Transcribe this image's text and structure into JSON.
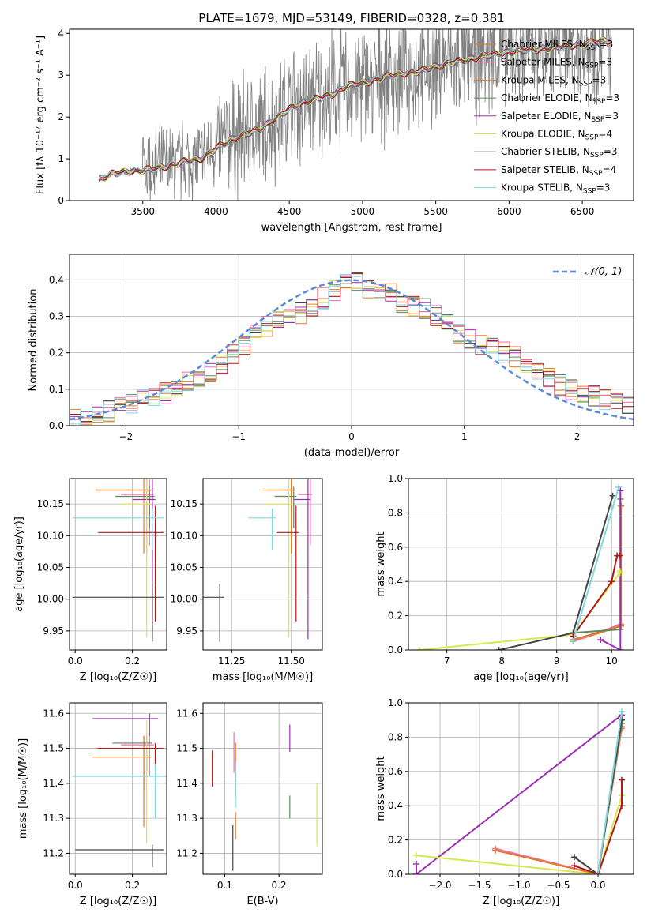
{
  "title": "PLATE=1679, MJD=53149, FIBERID=0328, z=0.381",
  "colors": {
    "chabrier_miles": "#e87d1e",
    "salpeter_miles": "#ee6fb4",
    "kroupa_miles": "#e07a2a",
    "chabrier_elodie": "#5a8a5a",
    "salpeter_elodie": "#9b2fb4",
    "kroupa_elodie": "#d6e84a",
    "chabrier_stelib": "#444444",
    "salpeter_stelib": "#b01818",
    "kroupa_stelib": "#7fd8e0",
    "data": "#808080",
    "gauss": "#5b8bd6"
  },
  "legend": [
    {
      "label": "Chabrier MILES, N",
      "sub": "SSP",
      "tail": "=3",
      "color": "#e87d1e"
    },
    {
      "label": "Salpeter MILES, N",
      "sub": "SSP",
      "tail": "=3",
      "color": "#ee6fb4"
    },
    {
      "label": "Kroupa MILES, N",
      "sub": "SSP",
      "tail": "=3",
      "color": "#e07a2a"
    },
    {
      "label": "Chabrier ELODIE, N",
      "sub": "SSP",
      "tail": "=3",
      "color": "#5a8a5a"
    },
    {
      "label": "Salpeter ELODIE, N",
      "sub": "SSP",
      "tail": "=3",
      "color": "#9b2fb4"
    },
    {
      "label": "Kroupa ELODIE, N",
      "sub": "SSP",
      "tail": "=4",
      "color": "#d6e84a"
    },
    {
      "label": "Chabrier STELIB, N",
      "sub": "SSP",
      "tail": "=3",
      "color": "#444444"
    },
    {
      "label": "Salpeter STELIB, N",
      "sub": "SSP",
      "tail": "=4",
      "color": "#b01818"
    },
    {
      "label": "Kroupa STELIB, N",
      "sub": "SSP",
      "tail": "=3",
      "color": "#7fd8e0"
    }
  ],
  "chart_data": [
    {
      "type": "line",
      "name": "spectrum",
      "xlabel": "wavelength [Angstrom, rest frame]",
      "ylabel": "Flux [fλ 10⁻¹⁷ erg cm⁻² s⁻¹ A⁻¹]",
      "xlim": [
        3000,
        6850
      ],
      "ylim": [
        0,
        4.1
      ],
      "xticks": [
        3500,
        4000,
        4500,
        5000,
        5500,
        6000,
        6500
      ],
      "yticks": [
        0,
        1,
        2,
        3,
        4
      ],
      "model_continuum": {
        "x": [
          3200,
          3300,
          3400,
          3500,
          3600,
          3700,
          3800,
          3900,
          4000,
          4100,
          4200,
          4300,
          4400,
          4500,
          4600,
          4700,
          4800,
          4900,
          5000,
          5100,
          5200,
          5300,
          5400,
          5500,
          5600,
          5700,
          5800,
          5900,
          6000,
          6100,
          6200,
          6300,
          6400,
          6500,
          6600,
          6700
        ],
        "y": [
          0.5,
          0.65,
          0.7,
          0.72,
          0.78,
          0.85,
          0.95,
          1.0,
          1.25,
          1.45,
          1.6,
          1.7,
          1.95,
          2.2,
          2.35,
          2.45,
          2.55,
          2.75,
          2.8,
          2.9,
          3.0,
          3.05,
          3.1,
          3.2,
          3.3,
          3.35,
          3.45,
          3.5,
          3.55,
          3.6,
          3.62,
          3.65,
          3.7,
          3.75,
          3.8,
          3.85
        ]
      }
    },
    {
      "type": "line",
      "name": "residual_histogram",
      "xlabel": "(data-model)/error",
      "ylabel": "Normed distribution",
      "xlim": [
        -2.5,
        2.5
      ],
      "ylim": [
        0,
        0.47
      ],
      "xticks": [
        -2,
        -1,
        0,
        1,
        2
      ],
      "yticks": [
        0.0,
        0.1,
        0.2,
        0.3,
        0.4
      ],
      "gauss_label": "𝒩(0, 1)",
      "hist_bins": [
        -2.5,
        -2.4,
        -2.3,
        -2.2,
        -2.1,
        -2.0,
        -1.9,
        -1.8,
        -1.7,
        -1.6,
        -1.5,
        -1.4,
        -1.3,
        -1.2,
        -1.1,
        -1.0,
        -0.9,
        -0.8,
        -0.7,
        -0.6,
        -0.5,
        -0.4,
        -0.3,
        -0.2,
        -0.1,
        0.0,
        0.1,
        0.2,
        0.3,
        0.4,
        0.5,
        0.6,
        0.7,
        0.8,
        0.9,
        1.0,
        1.1,
        1.2,
        1.3,
        1.4,
        1.5,
        1.6,
        1.7,
        1.8,
        1.9,
        2.0,
        2.1,
        2.2,
        2.3,
        2.4
      ],
      "hist_base": [
        0.02,
        0.025,
        0.03,
        0.04,
        0.05,
        0.06,
        0.07,
        0.08,
        0.09,
        0.1,
        0.12,
        0.13,
        0.15,
        0.17,
        0.2,
        0.22,
        0.25,
        0.27,
        0.29,
        0.3,
        0.31,
        0.33,
        0.35,
        0.37,
        0.39,
        0.4,
        0.38,
        0.37,
        0.36,
        0.34,
        0.33,
        0.32,
        0.3,
        0.28,
        0.25,
        0.24,
        0.22,
        0.21,
        0.2,
        0.19,
        0.17,
        0.15,
        0.13,
        0.11,
        0.1,
        0.09,
        0.08,
        0.07,
        0.06,
        0.06
      ]
    },
    {
      "type": "scatter",
      "name": "age_vs_Z",
      "xlabel": "Z [log₁₀(Z/Z☉)]",
      "ylabel": "age  [log₁₀(age/yr)]",
      "xlim": [
        -0.02,
        0.32
      ],
      "ylim": [
        9.92,
        10.19
      ],
      "xticks": [
        0.0,
        0.2
      ],
      "yticks": [
        9.95,
        10.0,
        10.05,
        10.1,
        10.15
      ],
      "points": [
        {
          "key": "chabrier_miles",
          "x": 0.24,
          "y": 10.172,
          "xerr": 0.17,
          "yerr": 0.1
        },
        {
          "key": "salpeter_miles",
          "x": 0.26,
          "y": 10.165,
          "xerr": 0.1,
          "yerr": 0.08
        },
        {
          "key": "kroupa_miles",
          "x": 0.25,
          "y": 10.172,
          "xerr": 0.18,
          "yerr": 0.1
        },
        {
          "key": "chabrier_elodie",
          "x": 0.26,
          "y": 10.162,
          "xerr": 0.12,
          "yerr": 0.05
        },
        {
          "key": "salpeter_elodie",
          "x": 0.27,
          "y": 10.157,
          "xerr": 0.07,
          "yerr": 0.22
        },
        {
          "key": "kroupa_elodie",
          "x": 0.25,
          "y": 10.15,
          "xerr": 0.09,
          "yerr": 0.21
        },
        {
          "key": "chabrier_stelib",
          "x": 0.27,
          "y": 10.003,
          "xerr": 0.28,
          "yerr": 0.07
        },
        {
          "key": "salpeter_stelib",
          "x": 0.28,
          "y": 10.105,
          "xerr": 0.2,
          "yerr": 0.14
        },
        {
          "key": "kroupa_stelib",
          "x": 0.27,
          "y": 10.128,
          "xerr": 0.28,
          "yerr": 0.05
        }
      ]
    },
    {
      "type": "scatter",
      "name": "age_vs_mass",
      "xlabel": "mass [log₁₀(M/M☉)]",
      "ylabel": "",
      "xlim": [
        11.13,
        11.63
      ],
      "ylim": [
        9.92,
        10.19
      ],
      "xticks": [
        11.25,
        11.5
      ],
      "yticks": [
        9.95,
        10.0,
        10.05,
        10.1,
        10.15
      ],
      "points": [
        {
          "key": "chabrier_miles",
          "x": 11.5,
          "y": 10.172,
          "xerr": 0.12,
          "yerr": 0.1
        },
        {
          "key": "salpeter_miles",
          "x": 11.58,
          "y": 10.165,
          "xerr": 0.05,
          "yerr": 0.08
        },
        {
          "key": "kroupa_miles",
          "x": 11.5,
          "y": 10.172,
          "xerr": 0.1,
          "yerr": 0.1
        },
        {
          "key": "chabrier_elodie",
          "x": 11.51,
          "y": 10.162,
          "xerr": 0.08,
          "yerr": 0.05
        },
        {
          "key": "salpeter_elodie",
          "x": 11.57,
          "y": 10.157,
          "xerr": 0.06,
          "yerr": 0.22
        },
        {
          "key": "kroupa_elodie",
          "x": 11.49,
          "y": 10.15,
          "xerr": 0.1,
          "yerr": 0.21
        },
        {
          "key": "chabrier_stelib",
          "x": 11.2,
          "y": 10.003,
          "xerr": 0.12,
          "yerr": 0.07
        },
        {
          "key": "salpeter_stelib",
          "x": 11.52,
          "y": 10.105,
          "xerr": 0.08,
          "yerr": 0.14
        },
        {
          "key": "kroupa_stelib",
          "x": 11.42,
          "y": 10.128,
          "xerr": 0.1,
          "yerr": 0.05
        }
      ]
    },
    {
      "type": "line",
      "name": "massweight_vs_age",
      "xlabel": "age  [log₁₀(age/yr)]",
      "ylabel": "mass weight",
      "xlim": [
        6.3,
        10.4
      ],
      "ylim": [
        0.0,
        1.0
      ],
      "xticks": [
        7,
        8,
        9,
        10
      ],
      "yticks": [
        0.0,
        0.2,
        0.4,
        0.6,
        0.8,
        1.0
      ],
      "series": [
        {
          "key": "chabrier_miles",
          "x": [
            9.3,
            10.17,
            10.17
          ],
          "y": [
            0.05,
            0.14,
            0.84
          ]
        },
        {
          "key": "salpeter_miles",
          "x": [
            9.3,
            10.17,
            10.17
          ],
          "y": [
            0.05,
            0.15,
            0.84
          ]
        },
        {
          "key": "kroupa_miles",
          "x": [
            9.3,
            10.17,
            10.17
          ],
          "y": [
            0.06,
            0.14,
            0.84
          ]
        },
        {
          "key": "chabrier_elodie",
          "x": [
            9.3,
            10.16,
            10.16
          ],
          "y": [
            0.1,
            0.12,
            0.88
          ]
        },
        {
          "key": "salpeter_elodie",
          "x": [
            9.8,
            10.16,
            10.16
          ],
          "y": [
            0.06,
            0.0,
            0.93
          ]
        },
        {
          "key": "kroupa_elodie",
          "x": [
            6.5,
            9.3,
            10.15,
            10.15
          ],
          "y": [
            0.0,
            0.09,
            0.45,
            0.46
          ]
        },
        {
          "key": "chabrier_stelib",
          "x": [
            7.95,
            9.3,
            10.02
          ],
          "y": [
            0.0,
            0.1,
            0.9
          ]
        },
        {
          "key": "salpeter_stelib",
          "x": [
            9.3,
            10.0,
            10.1,
            10.15
          ],
          "y": [
            0.08,
            0.4,
            0.55,
            0.55
          ]
        },
        {
          "key": "kroupa_stelib",
          "x": [
            9.3,
            10.13
          ],
          "y": [
            0.05,
            0.95
          ]
        }
      ]
    },
    {
      "type": "scatter",
      "name": "mass_vs_Z",
      "xlabel": "Z [log₁₀(Z/Z☉)]",
      "ylabel": "mass [log₁₀(M/M☉)]",
      "xlim": [
        -0.02,
        0.32
      ],
      "ylim": [
        11.14,
        11.63
      ],
      "xticks": [
        0.0,
        0.2
      ],
      "yticks": [
        11.2,
        11.3,
        11.4,
        11.5,
        11.6
      ],
      "points": [
        {
          "key": "chabrier_miles",
          "x": 0.24,
          "y": 11.5,
          "xerr": 0.17,
          "yerr": 0.12
        },
        {
          "key": "salpeter_miles",
          "x": 0.26,
          "y": 11.51,
          "xerr": 0.1,
          "yerr": 0.09
        },
        {
          "key": "kroupa_miles",
          "x": 0.24,
          "y": 11.475,
          "xerr": 0.18,
          "yerr": 0.2
        },
        {
          "key": "chabrier_elodie",
          "x": 0.25,
          "y": 11.515,
          "xerr": 0.12,
          "yerr": 0.08
        },
        {
          "key": "salpeter_elodie",
          "x": 0.26,
          "y": 11.585,
          "xerr": 0.2,
          "yerr": 0.05
        },
        {
          "key": "kroupa_elodie",
          "x": 0.25,
          "y": 11.5,
          "xerr": 0.08,
          "yerr": 0.27
        },
        {
          "key": "chabrier_stelib",
          "x": 0.27,
          "y": 11.21,
          "xerr": 0.27,
          "yerr": 0.05
        },
        {
          "key": "salpeter_stelib",
          "x": 0.28,
          "y": 11.5,
          "xerr": 0.2,
          "yerr": 0.05
        },
        {
          "key": "kroupa_stelib",
          "x": 0.28,
          "y": 11.42,
          "xerr": 0.29,
          "yerr": 0.12
        }
      ]
    },
    {
      "type": "scatter",
      "name": "mass_vs_EBV",
      "xlabel": "E(B-V)",
      "ylabel": "",
      "xlim": [
        0.06,
        0.28
      ],
      "ylim": [
        11.14,
        11.63
      ],
      "xticks": [
        0.1,
        0.2
      ],
      "yticks": [
        11.2,
        11.3,
        11.4,
        11.5,
        11.6
      ],
      "points": [
        {
          "key": "chabrier_miles",
          "x": 0.12,
          "y": 11.48,
          "xerr": 0.0,
          "yerr": 0.12
        },
        {
          "key": "salpeter_miles",
          "x": 0.117,
          "y": 11.52,
          "xerr": 0.0,
          "yerr": 0.09
        },
        {
          "key": "kroupa_miles",
          "x": 0.12,
          "y": 11.3,
          "xerr": 0.0,
          "yerr": 0.06
        },
        {
          "key": "chabrier_elodie",
          "x": 0.22,
          "y": 11.35,
          "xerr": 0.0,
          "yerr": 0.05
        },
        {
          "key": "salpeter_elodie",
          "x": 0.22,
          "y": 11.55,
          "xerr": 0.0,
          "yerr": 0.06
        },
        {
          "key": "kroupa_elodie",
          "x": 0.27,
          "y": 11.36,
          "xerr": 0.0,
          "yerr": 0.14
        },
        {
          "key": "chabrier_stelib",
          "x": 0.115,
          "y": 11.25,
          "xerr": 0.0,
          "yerr": 0.1
        },
        {
          "key": "salpeter_stelib",
          "x": 0.077,
          "y": 11.47,
          "xerr": 0.0,
          "yerr": 0.08
        },
        {
          "key": "kroupa_stelib",
          "x": 0.12,
          "y": 11.43,
          "xerr": 0.0,
          "yerr": 0.1
        }
      ]
    },
    {
      "type": "line",
      "name": "massweight_vs_Z",
      "xlabel": "Z [log₁₀(Z/Z☉)]",
      "ylabel": "mass weight",
      "xlim": [
        -2.4,
        0.45
      ],
      "ylim": [
        0.0,
        1.0
      ],
      "xticks": [
        -2.0,
        -1.5,
        -1.0,
        -0.5,
        0.0
      ],
      "yticks": [
        0.0,
        0.2,
        0.4,
        0.6,
        0.8,
        1.0
      ],
      "series": [
        {
          "key": "chabrier_miles",
          "x": [
            -1.3,
            0.0,
            0.3
          ],
          "y": [
            0.14,
            0.0,
            0.86
          ]
        },
        {
          "key": "salpeter_miles",
          "x": [
            -1.3,
            0.0,
            0.3
          ],
          "y": [
            0.15,
            0.0,
            0.85
          ]
        },
        {
          "key": "kroupa_miles",
          "x": [
            -1.3,
            0.0,
            0.3
          ],
          "y": [
            0.14,
            0.0,
            0.86
          ]
        },
        {
          "key": "chabrier_elodie",
          "x": [
            -0.3,
            0.0,
            0.3
          ],
          "y": [
            0.1,
            0.0,
            0.88
          ]
        },
        {
          "key": "salpeter_elodie",
          "x": [
            -2.3,
            -2.3,
            0.3
          ],
          "y": [
            0.06,
            0.0,
            0.93
          ]
        },
        {
          "key": "kroupa_elodie",
          "x": [
            -2.3,
            0.0,
            0.3
          ],
          "y": [
            0.11,
            0.0,
            0.46
          ]
        },
        {
          "key": "chabrier_stelib",
          "x": [
            -0.3,
            0.0,
            0.3
          ],
          "y": [
            0.1,
            0.0,
            0.9
          ]
        },
        {
          "key": "salpeter_stelib",
          "x": [
            -0.3,
            0.0,
            0.3,
            0.3
          ],
          "y": [
            0.05,
            0.0,
            0.4,
            0.55
          ]
        },
        {
          "key": "kroupa_stelib",
          "x": [
            0.0,
            0.3
          ],
          "y": [
            0.0,
            0.95
          ]
        }
      ]
    }
  ]
}
